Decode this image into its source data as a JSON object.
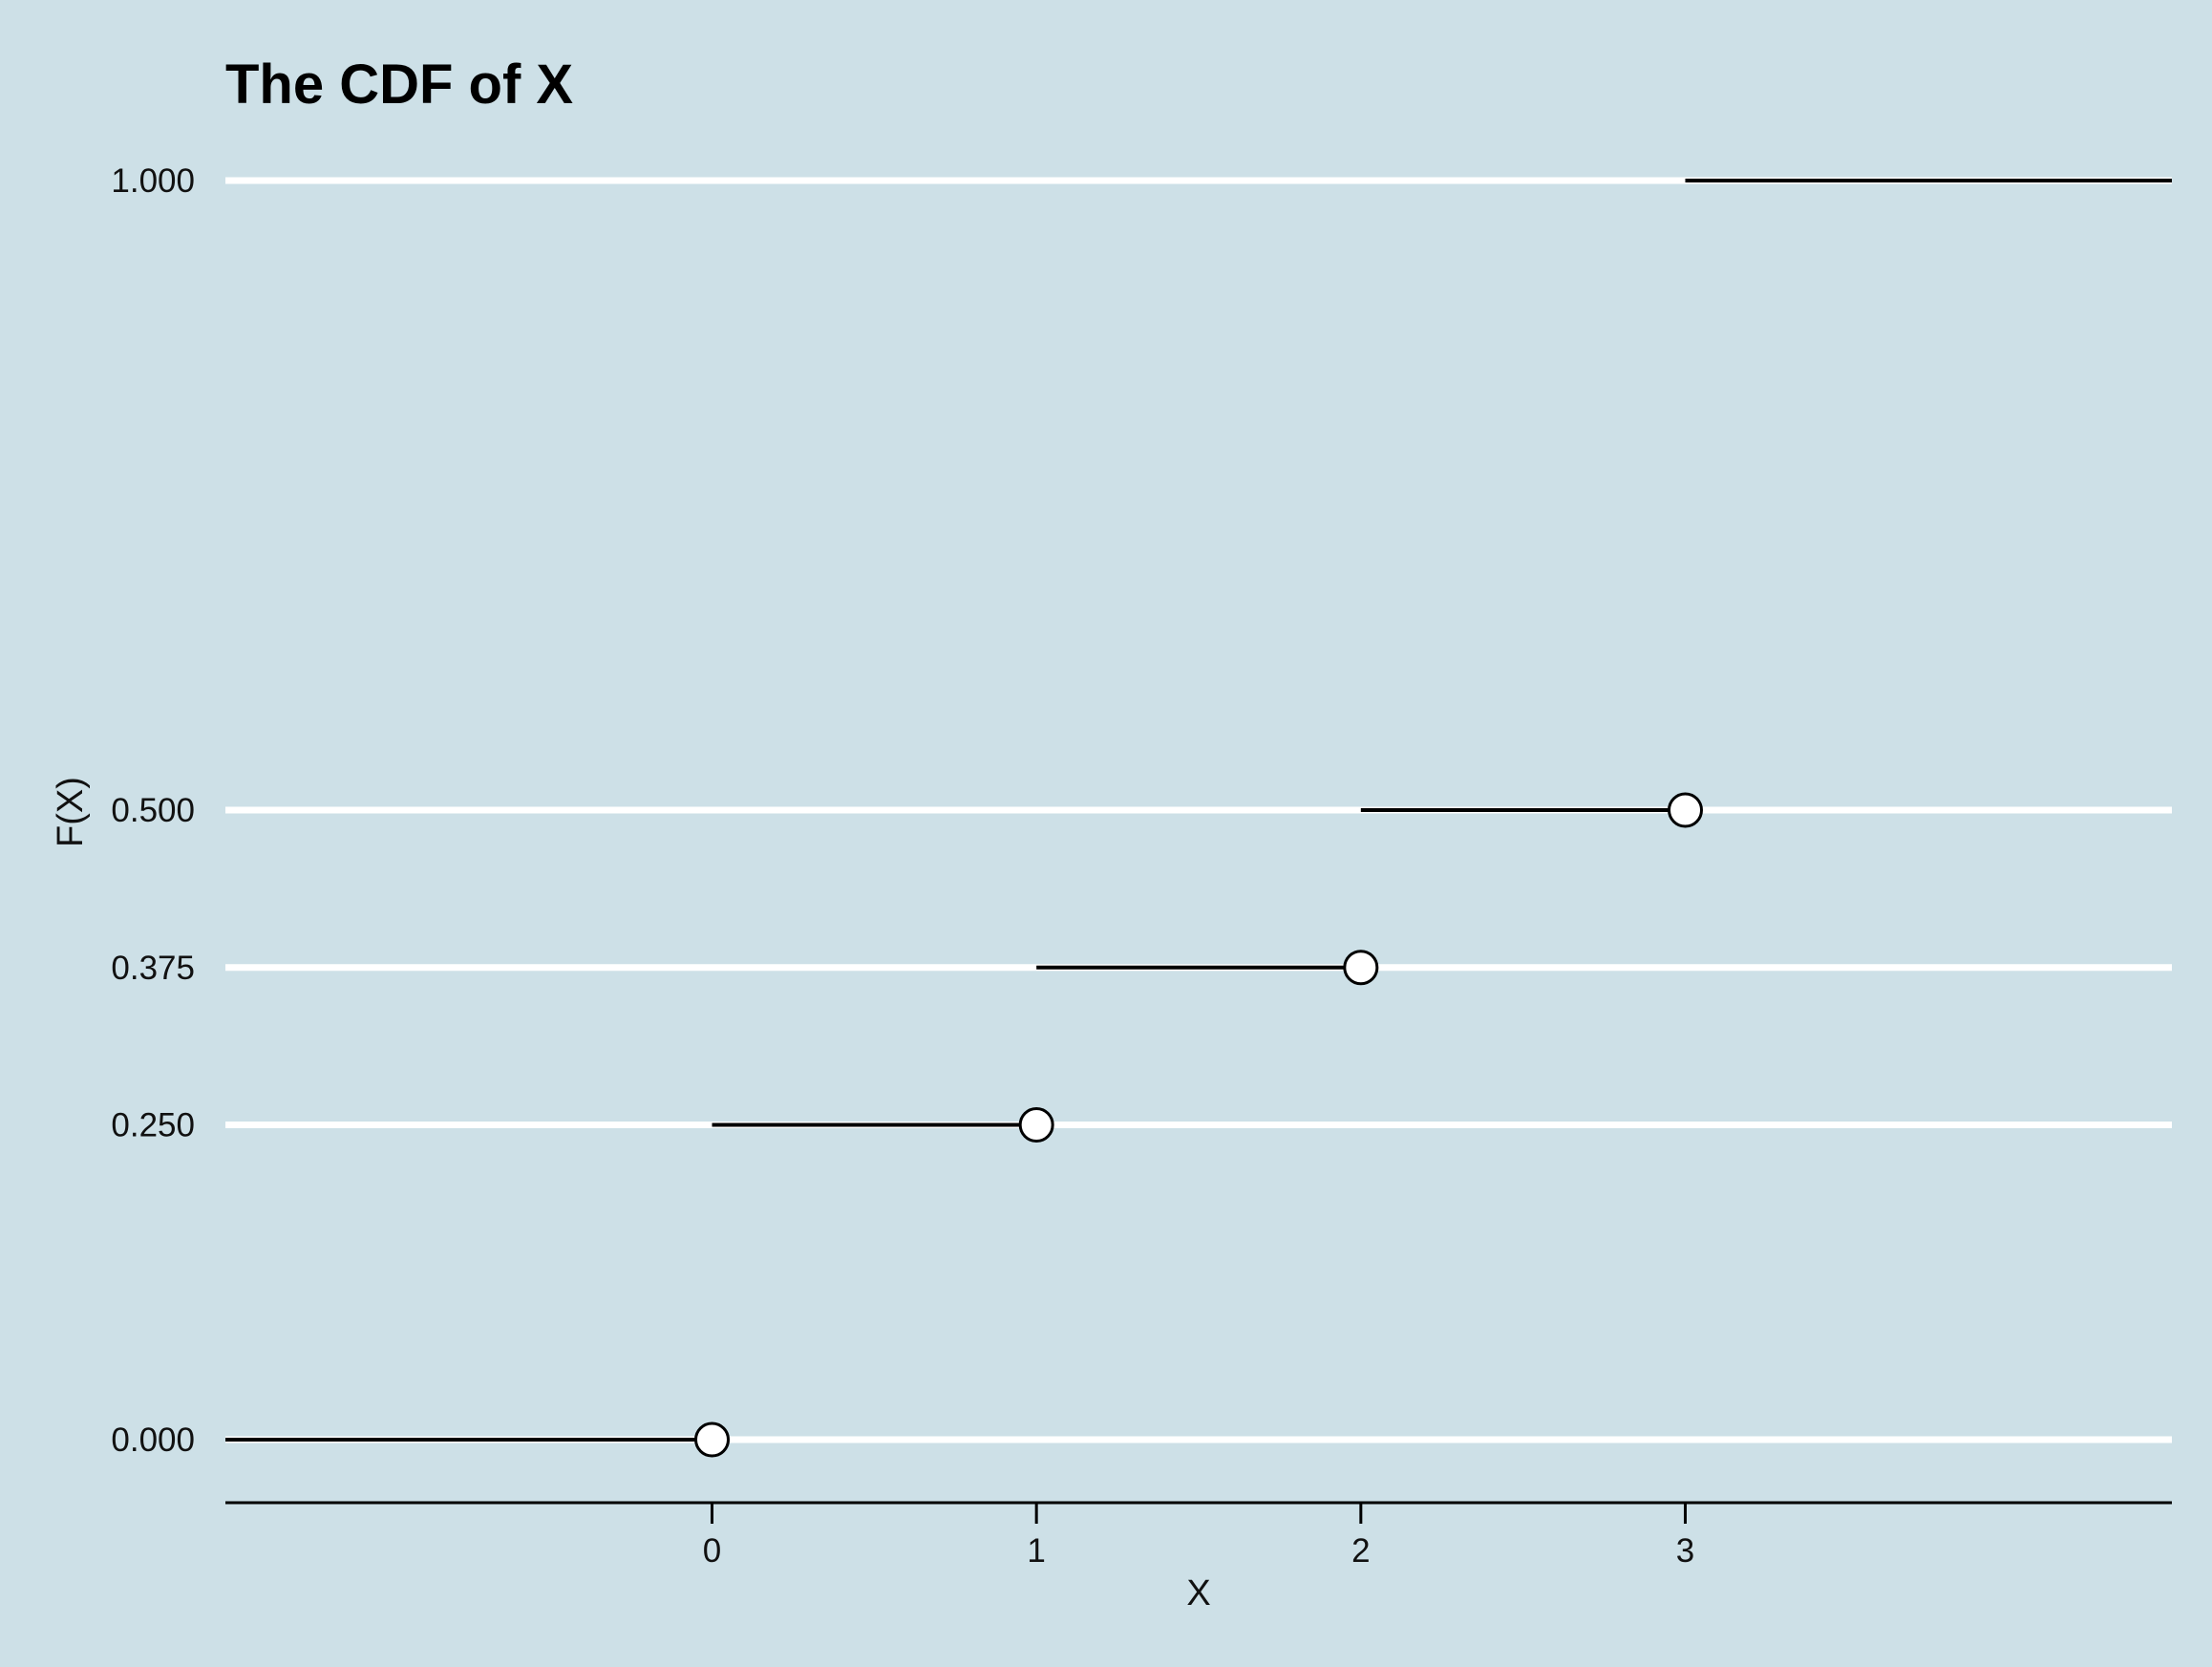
{
  "chart_data": {
    "type": "line",
    "title": "The CDF of X",
    "xlabel": "X",
    "ylabel": "F(X)",
    "xlim": [
      -1.5,
      4.5
    ],
    "ylim": [
      0,
      1
    ],
    "x_ticks": [
      0,
      1,
      2,
      3
    ],
    "x_tick_labels": [
      "0",
      "1",
      "2",
      "3"
    ],
    "y_ticks": [
      0,
      0.25,
      0.375,
      0.5,
      1
    ],
    "y_tick_labels": [
      "0.000",
      "0.250",
      "0.375",
      "0.500",
      "1.000"
    ],
    "grid": "horizontal",
    "steps": [
      {
        "x_start": -1.5,
        "x_end": 0,
        "y": 0
      },
      {
        "x_start": 0,
        "x_end": 1,
        "y": 0.25
      },
      {
        "x_start": 1,
        "x_end": 2,
        "y": 0.375
      },
      {
        "x_start": 2,
        "x_end": 3,
        "y": 0.5
      },
      {
        "x_start": 3,
        "x_end": 4.5,
        "y": 1
      }
    ],
    "open_points": [
      {
        "x": 0,
        "y": 0
      },
      {
        "x": 1,
        "y": 0.25
      },
      {
        "x": 2,
        "y": 0.375
      },
      {
        "x": 3,
        "y": 0.5
      }
    ],
    "colors": {
      "background": "#cde0e7",
      "gridline": "#ffffff",
      "line": "#000000",
      "point_fill": "#ffffff"
    }
  }
}
